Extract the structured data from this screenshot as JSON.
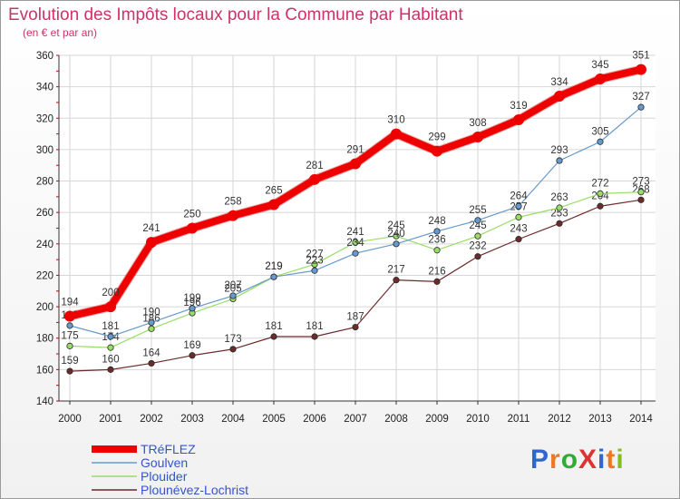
{
  "chart_data": {
    "type": "line",
    "title": "Evolution des Impôts locaux pour la Commune par Habitant",
    "subtitle": "(en € et par an)",
    "xlabel": "",
    "ylabel": "",
    "x": [
      "2000",
      "2001",
      "2002",
      "2003",
      "2004",
      "2005",
      "2006",
      "2007",
      "2008",
      "2009",
      "2010",
      "2011",
      "2012",
      "2013",
      "2014"
    ],
    "ylim": [
      140,
      360
    ],
    "yticks": [
      140,
      160,
      180,
      200,
      220,
      240,
      260,
      280,
      300,
      320,
      340,
      360
    ],
    "grid": true,
    "legend_position": "bottom-left",
    "series": [
      {
        "name": "TRéFLEZ",
        "color": "#ee0000",
        "values": [
          194,
          200,
          241,
          250,
          258,
          265,
          281,
          291,
          310,
          299,
          308,
          319,
          334,
          345,
          351
        ]
      },
      {
        "name": "Goulven",
        "color": "#6699cc",
        "values": [
          188,
          181,
          190,
          199,
          207,
          219,
          223,
          234,
          240,
          248,
          255,
          264,
          293,
          305,
          327
        ]
      },
      {
        "name": "Plouider",
        "color": "#99dd66",
        "values": [
          175,
          174,
          186,
          196,
          205,
          219,
          227,
          241,
          245,
          236,
          245,
          257,
          263,
          272,
          273
        ]
      },
      {
        "name": "Plounévez-Lochrist",
        "color": "#6b2b2b",
        "values": [
          159,
          160,
          164,
          169,
          173,
          181,
          181,
          187,
          217,
          216,
          232,
          243,
          253,
          264,
          268
        ]
      }
    ]
  },
  "logo": {
    "text": "ProXiti",
    "colors": [
      "#3366cc",
      "#ee7722",
      "#33aa33",
      "#dd3333",
      "#3366cc",
      "#ee7722",
      "#88bb22"
    ]
  }
}
